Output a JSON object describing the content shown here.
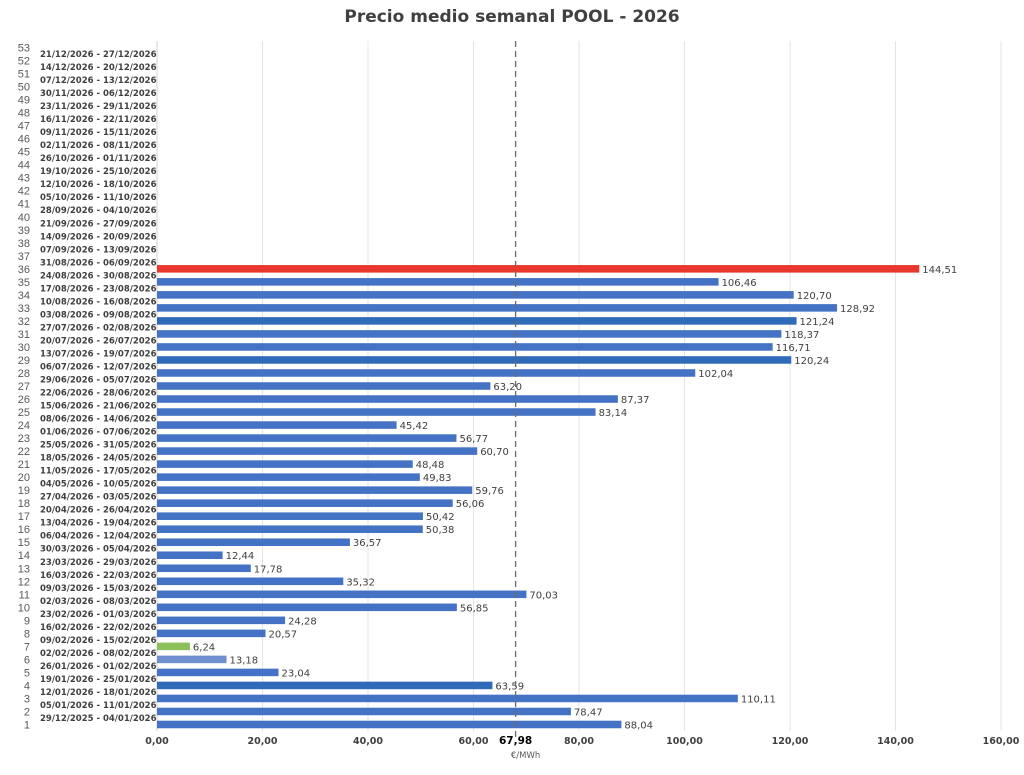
{
  "chart_data": {
    "type": "bar",
    "orientation": "horizontal",
    "title": "Precio medio semanal POOL - 2026",
    "xlabel": "€/MWh",
    "xlim": [
      0,
      160
    ],
    "x_ticks": [
      "0,00",
      "20,00",
      "40,00",
      "60,00",
      "80,00",
      "100,00",
      "120,00",
      "140,00",
      "160,00"
    ],
    "grid": true,
    "average": {
      "value": 67.98,
      "label": "67,98"
    },
    "colors": {
      "default": "#4472c4",
      "max": "#e8372c",
      "min": "#8cc05a",
      "dark": "#2f6bb8",
      "light": "#6f8fce"
    },
    "weeks": [
      {
        "num": "1",
        "range": "29/12/2025 - 04/01/2026",
        "value": 88.04,
        "label": "88,04"
      },
      {
        "num": "2",
        "range": "05/01/2026 - 11/01/2026",
        "value": 78.47,
        "label": "78,47"
      },
      {
        "num": "3",
        "range": "12/01/2026 - 18/01/2026",
        "value": 110.11,
        "label": "110,11"
      },
      {
        "num": "4",
        "range": "19/01/2026 - 25/01/2026",
        "value": 63.59,
        "label": "63,59",
        "style": "dark"
      },
      {
        "num": "5",
        "range": "26/01/2026 - 01/02/2026",
        "value": 23.04,
        "label": "23,04"
      },
      {
        "num": "6",
        "range": "02/02/2026 - 08/02/2026",
        "value": 13.18,
        "label": "13,18",
        "style": "light"
      },
      {
        "num": "7",
        "range": "09/02/2026 - 15/02/2026",
        "value": 6.24,
        "label": "6,24",
        "style": "min"
      },
      {
        "num": "8",
        "range": "16/02/2026 - 22/02/2026",
        "value": 20.57,
        "label": "20,57"
      },
      {
        "num": "9",
        "range": "23/02/2026 - 01/03/2026",
        "value": 24.28,
        "label": "24,28"
      },
      {
        "num": "10",
        "range": "02/03/2026 - 08/03/2026",
        "value": 56.85,
        "label": "56,85"
      },
      {
        "num": "11",
        "range": "09/03/2026 - 15/03/2026",
        "value": 70.03,
        "label": "70,03"
      },
      {
        "num": "12",
        "range": "16/03/2026 - 22/03/2026",
        "value": 35.32,
        "label": "35,32"
      },
      {
        "num": "13",
        "range": "23/03/2026 - 29/03/2026",
        "value": 17.78,
        "label": "17,78"
      },
      {
        "num": "14",
        "range": "30/03/2026 - 05/04/2026",
        "value": 12.44,
        "label": "12,44"
      },
      {
        "num": "15",
        "range": "06/04/2026 - 12/04/2026",
        "value": 36.57,
        "label": "36,57"
      },
      {
        "num": "16",
        "range": "13/04/2026 - 19/04/2026",
        "value": 50.38,
        "label": "50,38"
      },
      {
        "num": "17",
        "range": "20/04/2026 - 26/04/2026",
        "value": 50.42,
        "label": "50,42"
      },
      {
        "num": "18",
        "range": "27/04/2026 - 03/05/2026",
        "value": 56.06,
        "label": "56,06"
      },
      {
        "num": "19",
        "range": "04/05/2026 - 10/05/2026",
        "value": 59.76,
        "label": "59,76"
      },
      {
        "num": "20",
        "range": "11/05/2026 - 17/05/2026",
        "value": 49.83,
        "label": "49,83"
      },
      {
        "num": "21",
        "range": "18/05/2026 - 24/05/2026",
        "value": 48.48,
        "label": "48,48"
      },
      {
        "num": "22",
        "range": "25/05/2026 - 31/05/2026",
        "value": 60.7,
        "label": "60,70"
      },
      {
        "num": "23",
        "range": "01/06/2026 - 07/06/2026",
        "value": 56.77,
        "label": "56,77"
      },
      {
        "num": "24",
        "range": "08/06/2026 - 14/06/2026",
        "value": 45.42,
        "label": "45,42"
      },
      {
        "num": "25",
        "range": "15/06/2026 - 21/06/2026",
        "value": 83.14,
        "label": "83,14"
      },
      {
        "num": "26",
        "range": "22/06/2026 - 28/06/2026",
        "value": 87.37,
        "label": "87,37"
      },
      {
        "num": "27",
        "range": "29/06/2026 - 05/07/2026",
        "value": 63.2,
        "label": "63,20"
      },
      {
        "num": "28",
        "range": "06/07/2026 - 12/07/2026",
        "value": 102.04,
        "label": "102,04"
      },
      {
        "num": "29",
        "range": "13/07/2026 - 19/07/2026",
        "value": 120.24,
        "label": "120,24",
        "style": "dark"
      },
      {
        "num": "30",
        "range": "20/07/2026 - 26/07/2026",
        "value": 116.71,
        "label": "116,71"
      },
      {
        "num": "31",
        "range": "27/07/2026 - 02/08/2026",
        "value": 118.37,
        "label": "118,37"
      },
      {
        "num": "32",
        "range": "03/08/2026 - 09/08/2026",
        "value": 121.24,
        "label": "121,24",
        "style": "dark"
      },
      {
        "num": "33",
        "range": "10/08/2026 - 16/08/2026",
        "value": 128.92,
        "label": "128,92"
      },
      {
        "num": "34",
        "range": "17/08/2026 - 23/08/2026",
        "value": 120.7,
        "label": "120,70"
      },
      {
        "num": "35",
        "range": "24/08/2026 - 30/08/2026",
        "value": 106.46,
        "label": "106,46"
      },
      {
        "num": "36",
        "range": "31/08/2026 - 06/09/2026",
        "value": 144.51,
        "label": "144,51",
        "style": "max"
      },
      {
        "num": "37",
        "range": "07/09/2026 - 13/09/2026",
        "value": null,
        "label": ""
      },
      {
        "num": "38",
        "range": "14/09/2026 - 20/09/2026",
        "value": null,
        "label": ""
      },
      {
        "num": "39",
        "range": "21/09/2026 - 27/09/2026",
        "value": null,
        "label": ""
      },
      {
        "num": "40",
        "range": "28/09/2026 - 04/10/2026",
        "value": null,
        "label": ""
      },
      {
        "num": "41",
        "range": "05/10/2026 - 11/10/2026",
        "value": null,
        "label": ""
      },
      {
        "num": "42",
        "range": "12/10/2026 - 18/10/2026",
        "value": null,
        "label": ""
      },
      {
        "num": "43",
        "range": "19/10/2026 - 25/10/2026",
        "value": null,
        "label": ""
      },
      {
        "num": "44",
        "range": "26/10/2026 - 01/11/2026",
        "value": null,
        "label": ""
      },
      {
        "num": "45",
        "range": "02/11/2026 - 08/11/2026",
        "value": null,
        "label": ""
      },
      {
        "num": "46",
        "range": "09/11/2026 - 15/11/2026",
        "value": null,
        "label": ""
      },
      {
        "num": "47",
        "range": "16/11/2026 - 22/11/2026",
        "value": null,
        "label": ""
      },
      {
        "num": "48",
        "range": "23/11/2026 - 29/11/2026",
        "value": null,
        "label": ""
      },
      {
        "num": "49",
        "range": "30/11/2026 - 06/12/2026",
        "value": null,
        "label": ""
      },
      {
        "num": "50",
        "range": "07/12/2026 - 13/12/2026",
        "value": null,
        "label": ""
      },
      {
        "num": "51",
        "range": "14/12/2026 - 20/12/2026",
        "value": null,
        "label": ""
      },
      {
        "num": "52",
        "range": "21/12/2026 - 27/12/2026",
        "value": null,
        "label": ""
      },
      {
        "num": "53",
        "range": "",
        "value": null,
        "label": ""
      }
    ]
  }
}
